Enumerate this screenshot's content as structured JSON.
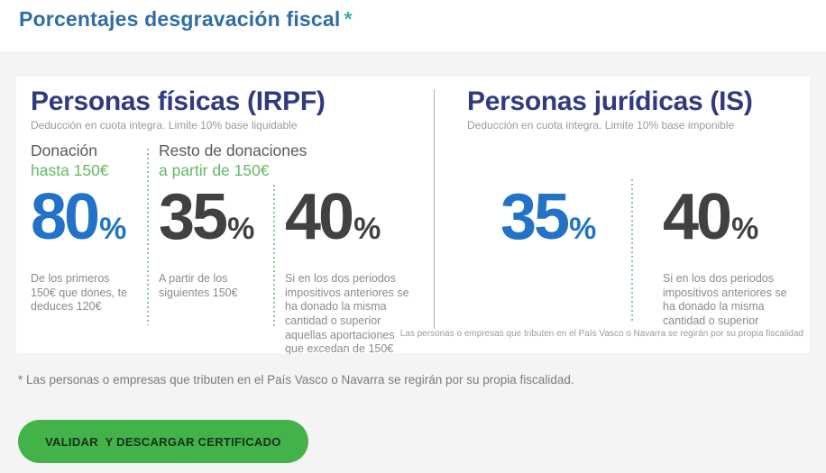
{
  "header": {
    "title": "Porcentajes desgravación fiscal",
    "asterisk": "*"
  },
  "card": {
    "fisicas": {
      "heading": "Personas físicas (IRPF)",
      "subheading": "Deducción en cuota integra. Limite 10% base liquidable",
      "group1": {
        "line1": "Donación",
        "line2": "hasta 150€"
      },
      "group2": {
        "line1": "Resto de donaciones",
        "line2": "a partir de 150€"
      },
      "stats": [
        {
          "value": "80",
          "unit": "%",
          "desc": "De los primeros 150€ que dones, te deduces 120€"
        },
        {
          "value": "35",
          "unit": "%",
          "desc": "A partir de los siguientes 150€"
        },
        {
          "value": "40",
          "unit": "%",
          "desc": "Si en los dos periodos impositivos anteriores se ha donado la misma cantidad o superior aquellas aportaciones que excedan de 150€"
        }
      ]
    },
    "juridicas": {
      "heading": "Personas jurídicas (IS)",
      "subheading": "Deducción en cuota integra. Limite 10% base imponible",
      "stats": [
        {
          "value": "35",
          "unit": "%",
          "desc": ""
        },
        {
          "value": "40",
          "unit": "%",
          "desc": "Si en los dos periodos impositivos anteriores se ha donado la misma cantidad o superior"
        }
      ],
      "note": "Las personas o empresas que tributen en el País Vasco o Navarra se regirán por su propia fiscalidad"
    }
  },
  "page": {
    "footnote": "* Las personas o empresas que tributen en el País Vasco o Navarra se regirán por su propia fiscalidad.",
    "button_label": "VALIDAR  Y DESCARGAR CERTIFICADO"
  },
  "colors": {
    "title_blue": "#2f6da5",
    "asterisk_teal": "#3db39b",
    "heading_navy": "#303a80",
    "number_blue": "#2273c8",
    "number_dark": "#414042",
    "green_text": "#64b964",
    "dotted_divider_green": "#8cc98c",
    "button_green": "#42b249",
    "page_background": "#f4f4f4"
  }
}
